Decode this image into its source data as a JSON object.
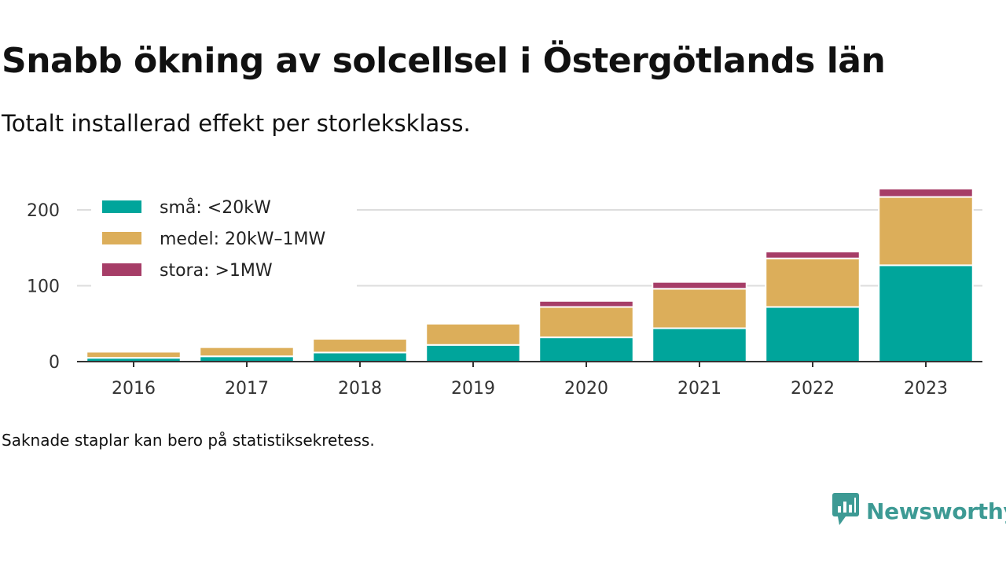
{
  "title": "Snabb ökning av solcellsel i Östergötlands län",
  "subtitle": "Totalt installerad effekt per storleksklass.",
  "note": "Saknade staplar kan bero på statistiksekretess.",
  "brand": {
    "name": "Newsworthy",
    "color": "#3d9a94",
    "icon": "newsworthy-logo-icon"
  },
  "chart_data": {
    "type": "bar",
    "stacked": true,
    "title": "Snabb ökning av solcellsel i Östergötlands län",
    "subtitle": "Totalt installerad effekt per storleksklass.",
    "xlabel": "",
    "ylabel": "",
    "categories": [
      "2016",
      "2017",
      "2018",
      "2019",
      "2020",
      "2021",
      "2022",
      "2023"
    ],
    "ylim": [
      0,
      230
    ],
    "yticks": [
      0,
      100,
      200
    ],
    "grid": true,
    "legend_position": "top-left",
    "series": [
      {
        "name": "små: <20kW",
        "color": "#00a59b",
        "values": [
          5,
          7,
          12,
          22,
          32,
          44,
          72,
          127
        ]
      },
      {
        "name": "medel: 20kW–1MW",
        "color": "#dcae5a",
        "values": [
          8,
          12,
          18,
          28,
          40,
          52,
          64,
          90
        ]
      },
      {
        "name": "stora: >1MW",
        "color": "#a63d67",
        "values": [
          0,
          0,
          0,
          0,
          8,
          9,
          9,
          11
        ]
      }
    ]
  }
}
